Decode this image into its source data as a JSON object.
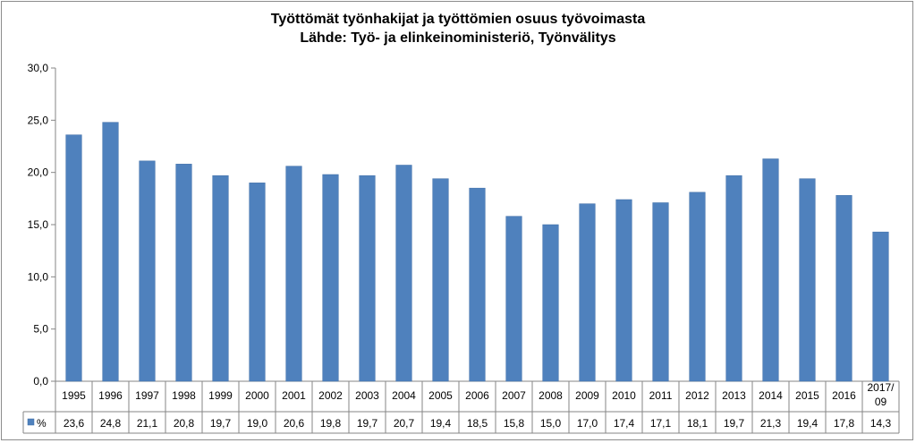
{
  "chart_data": {
    "type": "bar",
    "title": "Työttömät työnhakijat ja työttömien osuus työvoimasta",
    "subtitle": "Lähde: Työ- ja elinkeinoministeriö, Työnvälitys",
    "categories": [
      "1995",
      "1996",
      "1997",
      "1998",
      "1999",
      "2000",
      "2001",
      "2002",
      "2003",
      "2004",
      "2005",
      "2006",
      "2007",
      "2008",
      "2009",
      "2010",
      "2011",
      "2012",
      "2013",
      "2014",
      "2015",
      "2016",
      "2017/ 09"
    ],
    "series": [
      {
        "name": "%",
        "color": "#4f81bd",
        "values": [
          23.6,
          24.8,
          21.1,
          20.8,
          19.7,
          19.0,
          20.6,
          19.8,
          19.7,
          20.7,
          19.4,
          18.5,
          15.8,
          15.0,
          17.0,
          17.4,
          17.1,
          18.1,
          19.7,
          21.3,
          19.4,
          17.8,
          14.3
        ],
        "labels": [
          "23,6",
          "24,8",
          "21,1",
          "20,8",
          "19,7",
          "19,0",
          "20,6",
          "19,8",
          "19,7",
          "20,7",
          "19,4",
          "18,5",
          "15,8",
          "15,0",
          "17,0",
          "17,4",
          "17,1",
          "18,1",
          "19,7",
          "21,3",
          "19,4",
          "17,8",
          "14,3"
        ]
      }
    ],
    "ylim": [
      0,
      30
    ],
    "yticks": [
      0,
      5,
      10,
      15,
      20,
      25,
      30
    ],
    "ytick_labels": [
      "0,0",
      "5,0",
      "10,0",
      "15,0",
      "20,0",
      "25,0",
      "30,0"
    ],
    "grid": false,
    "legend": "data-table"
  }
}
